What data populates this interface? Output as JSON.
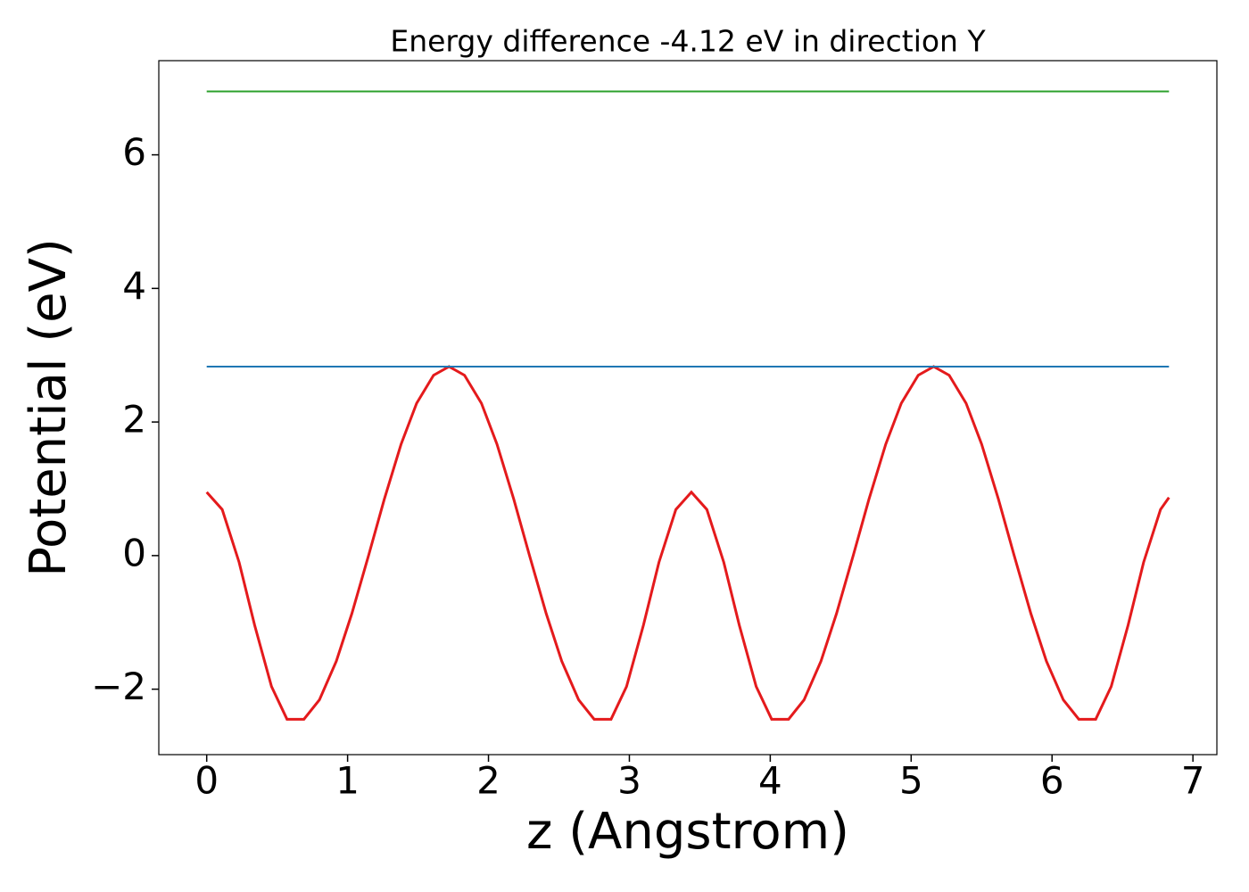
{
  "chart_data": {
    "type": "line",
    "title": "Energy difference -4.12 eV in direction Y",
    "xlabel": "z (Angstrom)",
    "ylabel": "Potential (eV)",
    "xlim": [
      -0.34,
      7.17
    ],
    "ylim": [
      -2.98,
      7.41
    ],
    "xticks": [
      0,
      1,
      2,
      3,
      4,
      5,
      6,
      7
    ],
    "yticks": [
      {
        "value": -2,
        "label": "−2"
      },
      0,
      2,
      4,
      6
    ],
    "series": [
      {
        "color": "#e41a1c",
        "x": [
          0,
          0.11,
          0.23,
          0.34,
          0.46,
          0.57,
          0.69,
          0.8,
          0.92,
          1.03,
          1.15,
          1.26,
          1.38,
          1.49,
          1.61,
          1.72,
          1.83,
          1.95,
          2.06,
          2.18,
          2.29,
          2.41,
          2.52,
          2.64,
          2.75,
          2.87,
          2.98,
          3.1,
          3.21,
          3.33,
          3.44,
          3.55,
          3.67,
          3.78,
          3.9,
          4.01,
          4.13,
          4.24,
          4.36,
          4.47,
          4.59,
          4.7,
          4.82,
          4.93,
          5.05,
          5.16,
          5.27,
          5.39,
          5.5,
          5.62,
          5.73,
          5.85,
          5.96,
          6.08,
          6.19,
          6.31,
          6.42,
          6.54,
          6.65,
          6.77,
          6.83
        ],
        "values": [
          0.95,
          0.69,
          -0.1,
          -1.04,
          -1.96,
          -2.45,
          -2.45,
          -2.16,
          -1.58,
          -0.87,
          0.01,
          0.84,
          1.67,
          2.28,
          2.7,
          2.83,
          2.7,
          2.28,
          1.67,
          0.84,
          0.01,
          -0.87,
          -1.58,
          -2.16,
          -2.45,
          -2.45,
          -1.96,
          -1.04,
          -0.1,
          0.69,
          0.95,
          0.69,
          -0.1,
          -1.04,
          -1.96,
          -2.45,
          -2.45,
          -2.16,
          -1.58,
          -0.87,
          0.01,
          0.84,
          1.67,
          2.28,
          2.7,
          2.83,
          2.7,
          2.28,
          1.67,
          0.84,
          0.01,
          -0.87,
          -1.58,
          -2.16,
          -2.45,
          -2.45,
          -1.96,
          -1.04,
          -0.1,
          0.69,
          0.87
        ]
      },
      {
        "color": "#1f77b4",
        "x": [
          0,
          6.83
        ],
        "values": [
          2.83,
          2.83
        ]
      },
      {
        "color": "#2ca02c",
        "x": [
          0,
          6.83
        ],
        "values": [
          6.95,
          6.95
        ]
      }
    ]
  }
}
